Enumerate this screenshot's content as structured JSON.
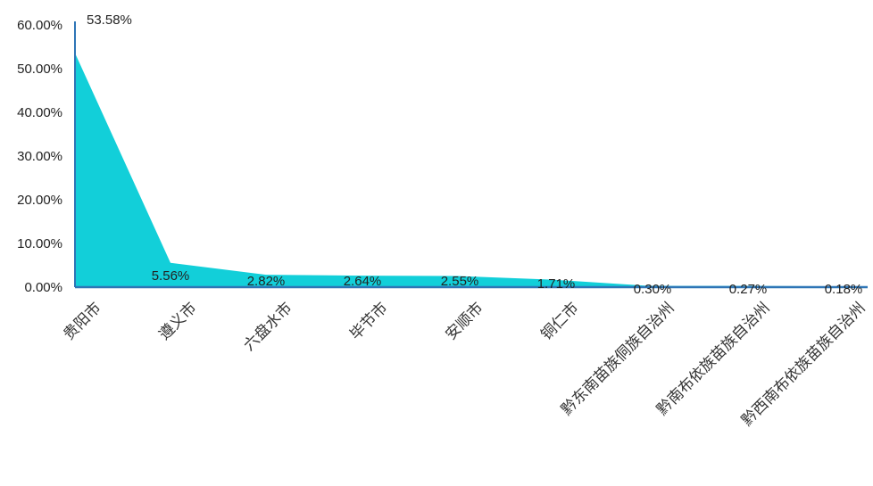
{
  "chart_data": {
    "type": "area",
    "categories": [
      "贵阳市",
      "遵义市",
      "六盘水市",
      "毕节市",
      "安顺市",
      "铜仁市",
      "黔东南苗族侗族自治州",
      "黔南布依族苗族自治州",
      "黔西南布依族苗族自治州"
    ],
    "values": [
      53.58,
      5.56,
      2.82,
      2.64,
      2.55,
      1.71,
      0.3,
      0.27,
      0.18
    ],
    "data_labels": [
      "53.58%",
      "5.56%",
      "2.82%",
      "2.64%",
      "2.55%",
      "1.71%",
      "0.30%",
      "0.27%",
      "0.18%"
    ],
    "y_ticks": [
      "0.00%",
      "10.00%",
      "20.00%",
      "30.00%",
      "40.00%",
      "50.00%",
      "60.00%"
    ],
    "ylim": [
      0,
      60
    ],
    "grid": false,
    "colors": {
      "area": "#12CFD9",
      "axis": "#2E75B6"
    }
  }
}
